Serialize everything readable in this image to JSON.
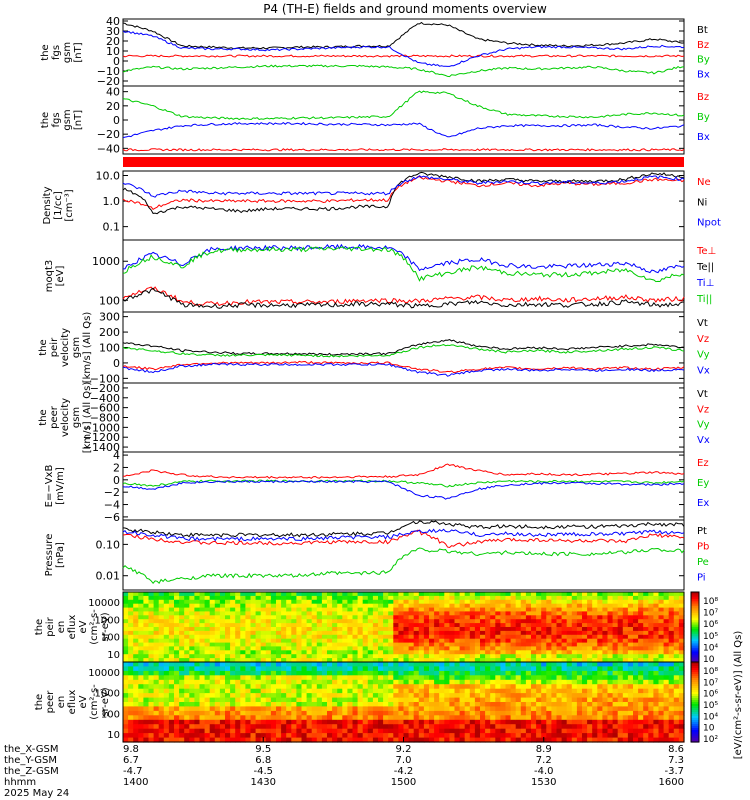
{
  "title": "P4 (TH-E) fields and ground moments overview",
  "chart_data": [
    {
      "type": "line",
      "ylabel": [
        "the",
        "fgs",
        "gsm",
        "[nT]"
      ],
      "yticks": [
        "40",
        "30",
        "20",
        "10",
        "0",
        "−10",
        "−20"
      ],
      "ylim": [
        -25,
        42
      ],
      "series": [
        {
          "name": "Bt",
          "color": "#000000",
          "y": [
            38,
            30,
            15,
            14,
            13,
            13,
            14,
            14,
            15,
            15,
            38,
            36,
            22,
            18,
            16,
            15,
            16,
            18,
            22,
            18
          ]
        },
        {
          "name": "Bz",
          "color": "#ff0000",
          "y": [
            5,
            5,
            5,
            5,
            5,
            5,
            5,
            5,
            5,
            5,
            5,
            5,
            5,
            5,
            5,
            5,
            5,
            5,
            5,
            5
          ]
        },
        {
          "name": "By",
          "color": "#00cc00",
          "y": [
            -10,
            -6,
            -8,
            -7,
            -6,
            -5,
            -5,
            -5,
            -5,
            -6,
            -8,
            -15,
            -10,
            -7,
            -8,
            -7,
            -6,
            -10,
            -12,
            -5
          ]
        },
        {
          "name": "Bx",
          "color": "#0000ff",
          "y": [
            30,
            25,
            13,
            12,
            12,
            11,
            12,
            13,
            14,
            14,
            -2,
            -6,
            5,
            12,
            14,
            14,
            13,
            12,
            15,
            14
          ]
        }
      ]
    },
    {
      "type": "line",
      "ylabel": [
        "the",
        "fgs",
        "gsm",
        "[nT]"
      ],
      "yticks": [
        "40",
        "20",
        "0",
        "−20",
        "−40"
      ],
      "ylim": [
        -48,
        48
      ],
      "series": [
        {
          "name": "Bz",
          "color": "#ff0000",
          "y": [
            -42,
            -42,
            -42,
            -42,
            -42,
            -42,
            -42,
            -42,
            -42,
            -42,
            -42,
            -42,
            -42,
            -42,
            -42,
            -42,
            -42,
            -42,
            -42,
            -42
          ]
        },
        {
          "name": "By",
          "color": "#00cc00",
          "y": [
            30,
            20,
            5,
            3,
            2,
            2,
            3,
            3,
            4,
            5,
            40,
            38,
            20,
            8,
            6,
            5,
            4,
            8,
            10,
            6
          ]
        },
        {
          "name": "Bx",
          "color": "#0000ff",
          "y": [
            -25,
            -15,
            -8,
            -6,
            -5,
            -5,
            -5,
            -6,
            -6,
            -7,
            -5,
            -25,
            -12,
            -8,
            -8,
            -8,
            -7,
            -10,
            -12,
            -8
          ]
        }
      ]
    },
    {
      "type": "line",
      "log": true,
      "ylabel": [
        "Density",
        "[1/cc]",
        "[cm⁻³]"
      ],
      "yticks": [
        "10.0",
        "1.0",
        "0.1"
      ],
      "ylim": [
        0.03,
        15
      ],
      "series": [
        {
          "name": "Ne",
          "color": "#ff0000",
          "y": [
            1.2,
            0.5,
            1.1,
            1.0,
            1.0,
            1.0,
            1.0,
            1.0,
            1.1,
            1.1,
            8.0,
            6.0,
            4.0,
            5.0,
            4.0,
            5.0,
            4.5,
            5.0,
            7.0,
            6.0
          ]
        },
        {
          "name": "Ni",
          "color": "#000000",
          "y": [
            3.0,
            0.3,
            0.6,
            0.5,
            0.4,
            0.5,
            0.5,
            0.5,
            0.6,
            0.6,
            12.0,
            9.0,
            6.0,
            7.0,
            6.0,
            6.0,
            6.0,
            7.0,
            12.0,
            9.0
          ]
        },
        {
          "name": "Npot",
          "color": "#0000ff",
          "y": [
            5.0,
            1.5,
            2.5,
            2.0,
            2.0,
            2.0,
            2.0,
            2.0,
            2.0,
            2.0,
            9.0,
            7.0,
            5.0,
            6.0,
            5.0,
            5.5,
            5.0,
            6.0,
            9.0,
            7.0
          ]
        }
      ]
    },
    {
      "type": "line",
      "log": true,
      "ylabel": [
        "moqt3",
        "[eV]"
      ],
      "yticks": [
        "1000",
        "100"
      ],
      "ylim": [
        50,
        3500
      ],
      "series": [
        {
          "name": "Te⊥",
          "color": "#ff0000",
          "y": [
            120,
            200,
            90,
            80,
            90,
            90,
            90,
            90,
            100,
            100,
            95,
            110,
            120,
            100,
            110,
            100,
            110,
            120,
            100,
            110
          ]
        },
        {
          "name": "Te||",
          "color": "#000000",
          "y": [
            100,
            180,
            75,
            70,
            75,
            75,
            75,
            75,
            80,
            80,
            70,
            80,
            90,
            75,
            80,
            75,
            80,
            90,
            75,
            80
          ]
        },
        {
          "name": "Ti⊥",
          "color": "#0000ff",
          "y": [
            600,
            1500,
            800,
            2000,
            2200,
            2200,
            2200,
            2300,
            2300,
            2200,
            600,
            900,
            1100,
            800,
            700,
            750,
            800,
            900,
            500,
            800
          ]
        },
        {
          "name": "Ti||",
          "color": "#00cc00",
          "y": [
            500,
            1300,
            700,
            1800,
            2000,
            2000,
            2000,
            2100,
            2100,
            2000,
            350,
            500,
            700,
            500,
            450,
            450,
            500,
            600,
            300,
            500
          ]
        }
      ]
    },
    {
      "type": "line",
      "ylabel": [
        "the",
        "peir",
        "velocity",
        "gsm",
        "[km/s] (All Qs)"
      ],
      "yticks": [
        "300",
        "200",
        "100",
        "0",
        "−100"
      ],
      "ylim": [
        -130,
        330
      ],
      "series": [
        {
          "name": "Vt",
          "color": "#000000",
          "y": [
            130,
            110,
            80,
            70,
            60,
            60,
            60,
            55,
            60,
            60,
            120,
            150,
            110,
            90,
            100,
            90,
            100,
            110,
            120,
            100
          ]
        },
        {
          "name": "Vz",
          "color": "#ff0000",
          "y": [
            -20,
            -40,
            -10,
            0,
            0,
            0,
            5,
            0,
            0,
            0,
            -40,
            -60,
            -40,
            -30,
            -40,
            -30,
            -40,
            -30,
            -40,
            -30
          ]
        },
        {
          "name": "Vy",
          "color": "#00cc00",
          "y": [
            100,
            80,
            60,
            50,
            50,
            50,
            50,
            45,
            45,
            50,
            100,
            120,
            90,
            70,
            80,
            70,
            80,
            90,
            100,
            80
          ]
        },
        {
          "name": "Vx",
          "color": "#0000ff",
          "y": [
            -30,
            -60,
            -20,
            -10,
            -10,
            -10,
            -10,
            -10,
            -10,
            -10,
            -60,
            -80,
            -50,
            -40,
            -50,
            -40,
            -50,
            -40,
            -50,
            -40
          ]
        }
      ]
    },
    {
      "type": "line",
      "ylabel": [
        "the",
        "peer",
        "velocity",
        "gsm",
        "[km/s] (All Qs)"
      ],
      "yticks": [
        "−200",
        "−400",
        "−600",
        "−800",
        "−1000",
        "−1200",
        "−1400"
      ],
      "ylim": [
        -1500,
        -100
      ],
      "series": [
        {
          "name": "Vt",
          "color": "#000000",
          "y": []
        },
        {
          "name": "Vz",
          "color": "#ff0000",
          "y": []
        },
        {
          "name": "Vy",
          "color": "#00cc00",
          "y": []
        },
        {
          "name": "Vx",
          "color": "#0000ff",
          "y": []
        }
      ]
    },
    {
      "type": "line",
      "ylabel": [
        "E=−VxB",
        "[mV/m]"
      ],
      "yticks": [
        "4",
        "2",
        "0",
        "−2",
        "−4",
        "−6"
      ],
      "ylim": [
        -6.5,
        4.5
      ],
      "series": [
        {
          "name": "Ez",
          "color": "#ff0000",
          "y": [
            0.5,
            1.5,
            0.8,
            0.5,
            0.4,
            0.4,
            0.4,
            0.4,
            0.5,
            0.5,
            0.8,
            2.5,
            1.5,
            0.8,
            1.0,
            0.8,
            0.9,
            1.0,
            1.2,
            0.9
          ]
        },
        {
          "name": "Ey",
          "color": "#00cc00",
          "y": [
            -0.5,
            -1.0,
            -0.3,
            -0.2,
            -0.2,
            -0.2,
            -0.2,
            -0.2,
            -0.2,
            -0.2,
            -0.5,
            -1.0,
            -0.5,
            -0.2,
            -0.3,
            -0.2,
            -0.3,
            -0.3,
            -0.5,
            -0.2
          ]
        },
        {
          "name": "Ex",
          "color": "#0000ff",
          "y": [
            -1.0,
            -1.5,
            -0.5,
            -0.3,
            -0.3,
            -0.3,
            -0.3,
            -0.3,
            -0.3,
            -0.3,
            -2.5,
            -3.0,
            -1.5,
            -0.8,
            -0.6,
            -0.5,
            -0.6,
            -0.7,
            -0.8,
            -0.6
          ]
        }
      ]
    },
    {
      "type": "line",
      "log": true,
      "ylabel": [
        "Pressure",
        "[nPa]"
      ],
      "yticks": [
        "0.10",
        "0.01"
      ],
      "ylim": [
        0.0035,
        0.6
      ],
      "series": [
        {
          "name": "Pt",
          "color": "#000000",
          "y": [
            0.3,
            0.25,
            0.2,
            0.2,
            0.2,
            0.2,
            0.2,
            0.21,
            0.22,
            0.23,
            0.55,
            0.45,
            0.35,
            0.38,
            0.36,
            0.37,
            0.37,
            0.38,
            0.45,
            0.42
          ]
        },
        {
          "name": "Pb",
          "color": "#ff0000",
          "y": [
            0.2,
            0.15,
            0.12,
            0.11,
            0.11,
            0.11,
            0.11,
            0.12,
            0.12,
            0.12,
            0.25,
            0.08,
            0.12,
            0.14,
            0.14,
            0.13,
            0.13,
            0.12,
            0.2,
            0.16
          ]
        },
        {
          "name": "Pe",
          "color": "#00cc00",
          "y": [
            0.02,
            0.006,
            0.008,
            0.01,
            0.01,
            0.01,
            0.01,
            0.012,
            0.012,
            0.013,
            0.07,
            0.06,
            0.05,
            0.055,
            0.05,
            0.05,
            0.05,
            0.055,
            0.07,
            0.06
          ]
        },
        {
          "name": "Pi",
          "color": "#0000ff",
          "y": [
            0.25,
            0.2,
            0.15,
            0.15,
            0.15,
            0.15,
            0.15,
            0.16,
            0.17,
            0.17,
            0.25,
            0.28,
            0.2,
            0.22,
            0.2,
            0.21,
            0.21,
            0.22,
            0.25,
            0.23
          ]
        }
      ]
    },
    {
      "type": "heatmap",
      "ylabel": [
        "the",
        "peir",
        "en",
        "eflux",
        "eV",
        "(cm²-s-",
        "sr-eV)"
      ],
      "yticks": [
        "10000",
        "1000",
        "100",
        "10"
      ],
      "colorbar_ticks": [
        "10⁸",
        "10⁷",
        "10⁶",
        "10⁵",
        "10⁴",
        "10⁳"
      ]
    },
    {
      "type": "heatmap",
      "ylabel": [
        "the",
        "peer",
        "en",
        "eflux",
        "eV",
        "(cm²-s-",
        "sr-eV)"
      ],
      "yticks": [
        "10000",
        "1000",
        "100",
        "10"
      ],
      "colorbar_ticks": [
        "10⁸",
        "10⁷",
        "10⁶",
        "10⁵",
        "10⁴",
        "10⁳",
        "10²"
      ]
    }
  ],
  "colorbar_label": "[eV/(cm²-s-sr-eV)] (All Qs)",
  "xaxis": {
    "tick_columns": [
      {
        "x": "9.8",
        "y": "6.7",
        "z": "-4.7",
        "t": "1400"
      },
      {
        "x": "9.5",
        "y": "6.8",
        "z": "-4.5",
        "t": "1430"
      },
      {
        "x": "9.2",
        "y": "7.0",
        "z": "-4.2",
        "t": "1500"
      },
      {
        "x": "8.9",
        "y": "7.2",
        "z": "-4.0",
        "t": "1530"
      },
      {
        "x": "8.6",
        "y": "7.3",
        "z": "-3.7",
        "t": "1600"
      }
    ],
    "row_labels": [
      "the_X-GSM",
      "the_Y-GSM",
      "the_Z-GSM",
      "hhmm"
    ],
    "date": "2025 May 24"
  }
}
